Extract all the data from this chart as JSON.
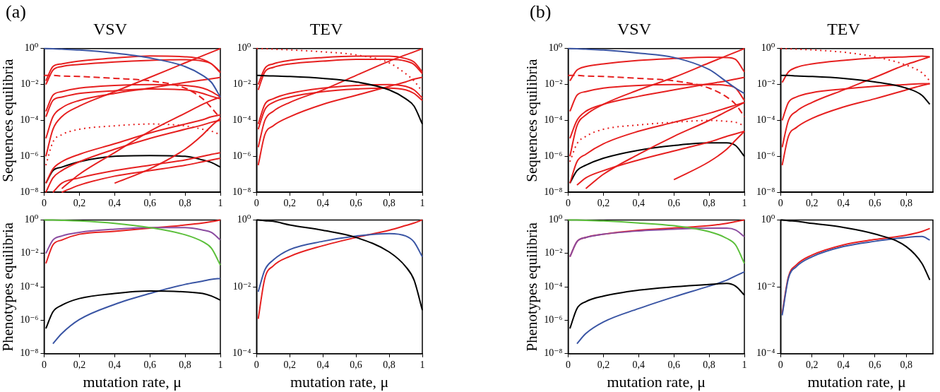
{
  "chart_data": [
    {
      "type": "line",
      "title": "VSV",
      "ylabel": "Sequences equilibria",
      "annotations": [
        "(a)"
      ],
      "log": true,
      "xlim": [
        0,
        1
      ],
      "ylim": [
        1e-08,
        1
      ],
      "xticks": [
        {
          "value": 0,
          "label": "0"
        },
        {
          "value": 0.2,
          "label": "0,2"
        },
        {
          "value": 0.4,
          "label": "0,4"
        },
        {
          "value": 0.6,
          "label": "0,6"
        },
        {
          "value": 0.8,
          "label": "0,8"
        },
        {
          "value": 1,
          "label": "1"
        }
      ],
      "yticks": [
        {
          "value": 1,
          "label": "10⁰"
        },
        {
          "value": 0.01,
          "label": "10⁻²"
        },
        {
          "value": 0.0001,
          "label": "10⁻⁴"
        },
        {
          "value": 1e-06,
          "label": "10⁻⁶"
        },
        {
          "value": 1e-08,
          "label": "10⁻⁸"
        }
      ],
      "x": [
        0,
        0.01,
        0.05,
        0.1,
        0.2,
        0.4,
        0.6,
        0.8,
        0.9,
        0.95,
        1
      ],
      "series": [
        {
          "color": "#3a55a4",
          "values": [
            1,
            1,
            0.98,
            0.93,
            0.83,
            0.56,
            0.3,
            0.1,
            0.032,
            0.013,
            0.002
          ]
        },
        {
          "color": "#e62020",
          "values": [
            null,
            0.016,
            0.1,
            0.14,
            0.2,
            0.3,
            0.39,
            0.35,
            0.25,
            0.14,
            0.045
          ]
        },
        {
          "color": "#e62020",
          "values": [
            null,
            0.01,
            0.063,
            0.1,
            0.13,
            0.18,
            0.22,
            0.24,
            0.2,
            0.14,
            0.05
          ]
        },
        {
          "color": "#e62020",
          "line_style": "dashed",
          "values": [
            0.032,
            0.032,
            0.032,
            0.03,
            0.028,
            0.022,
            0.016,
            0.0063,
            0.0016,
            0.0005,
            0.00013
          ]
        },
        {
          "color": "#e62020",
          "values": [
            null,
            0.00032,
            0.0025,
            0.004,
            0.0063,
            0.0089,
            0.01,
            0.0089,
            0.0063,
            0.004,
            0.002
          ]
        },
        {
          "color": "#e62020",
          "values": [
            null,
            0.00016,
            0.0013,
            0.002,
            0.0032,
            0.0045,
            0.0056,
            0.005,
            0.0032,
            0.0022,
            0.0016
          ]
        },
        {
          "color": "#e62020",
          "values": [
            null,
            1e-06,
            3.2e-05,
            0.00016,
            0.00063,
            0.004,
            0.025,
            0.16,
            0.4,
            0.63,
            1
          ]
        },
        {
          "color": "#e62020",
          "values": [
            null,
            1e-05,
            0.00016,
            0.0005,
            0.0013,
            0.0032,
            0.0063,
            0.013,
            0.018,
            0.021,
            0.025
          ]
        },
        {
          "color": "#e62020",
          "values": [
            null,
            null,
            null,
            1.6e-08,
            1e-07,
            1.6e-06,
            2.5e-05,
            0.00025,
            0.00079,
            0.0013,
            0.002
          ]
        },
        {
          "color": "#e62020",
          "line_style": "dotted",
          "values": [
            null,
            3.2e-07,
            6.3e-06,
            1.6e-05,
            3.2e-05,
            5e-05,
            6.3e-05,
            5e-05,
            3.2e-05,
            2.5e-05,
            1.6e-05
          ]
        },
        {
          "color": "#e62020",
          "values": [
            null,
            3.2e-08,
            2e-07,
            5e-07,
            1.3e-06,
            5e-06,
            2e-05,
            6.3e-05,
            0.00011,
            0.00016,
            0.0002
          ]
        },
        {
          "color": "#e62020",
          "values": [
            null,
            1e-08,
            6.3e-08,
            1.6e-07,
            5e-07,
            2.5e-06,
            1e-05,
            3.2e-05,
            5.6e-05,
            7.9e-05,
            0.0001
          ]
        },
        {
          "color": "#e62020",
          "values": [
            null,
            null,
            1e-08,
            3.2e-08,
            6.3e-08,
            1.6e-07,
            3.2e-07,
            6.3e-07,
            1e-06,
            1.3e-06,
            1.6e-06
          ]
        },
        {
          "color": "#e62020",
          "values": [
            null,
            null,
            null,
            1e-08,
            2.5e-08,
            7.9e-08,
            1.6e-07,
            3.2e-07,
            5e-07,
            6.3e-07,
            7.9e-07
          ]
        },
        {
          "color": "#e62020",
          "values": [
            null,
            null,
            null,
            null,
            null,
            3.2e-08,
            2e-07,
            2.5e-06,
            1.6e-05,
            5e-05,
            0.00013
          ]
        },
        {
          "color": "#000000",
          "values": [
            null,
            3.2e-08,
            1.6e-07,
            2.5e-07,
            5e-07,
            1e-06,
            1.1e-06,
            1e-06,
            6.3e-07,
            4.5e-07,
            2.5e-07
          ]
        }
      ]
    },
    {
      "type": "line",
      "title": "TEV",
      "log": true,
      "xlim": [
        0,
        1
      ],
      "ylim": [
        1e-08,
        1
      ],
      "xticks": [
        {
          "value": 0,
          "label": "0"
        },
        {
          "value": 0.2,
          "label": "0,2"
        },
        {
          "value": 0.4,
          "label": "0,4"
        },
        {
          "value": 0.6,
          "label": "0,6"
        },
        {
          "value": 0.8,
          "label": "0,8"
        },
        {
          "value": 1,
          "label": "1"
        }
      ],
      "yticks": [
        {
          "value": 1,
          "label": "10⁰"
        },
        {
          "value": 0.01,
          "label": "10⁻²"
        },
        {
          "value": 0.0001,
          "label": "10⁻⁴"
        },
        {
          "value": 1e-06,
          "label": "10⁻⁶"
        },
        {
          "value": 1e-08,
          "label": "10⁻⁸"
        }
      ],
      "x": [
        0,
        0.01,
        0.05,
        0.1,
        0.2,
        0.4,
        0.6,
        0.8,
        0.9,
        0.95,
        1
      ],
      "series": [
        {
          "color": "#e62020",
          "line_style": "dotted",
          "values": [
            1,
            1,
            0.98,
            0.93,
            0.85,
            0.66,
            0.45,
            0.16,
            0.04,
            0.016,
            0.004
          ]
        },
        {
          "color": "#000000",
          "values": [
            0.032,
            0.032,
            0.031,
            0.03,
            0.028,
            0.022,
            0.014,
            0.005,
            0.0016,
            0.00063,
            6.3e-05
          ]
        },
        {
          "color": "#e62020",
          "values": [
            null,
            0.01,
            0.079,
            0.14,
            0.22,
            0.32,
            0.38,
            0.38,
            0.28,
            0.18,
            0.05
          ]
        },
        {
          "color": "#e62020",
          "values": [
            null,
            0.005,
            0.05,
            0.089,
            0.14,
            0.2,
            0.25,
            0.25,
            0.2,
            0.13,
            0.04
          ]
        },
        {
          "color": "#e62020",
          "values": [
            null,
            3.2e-06,
            0.0001,
            0.00032,
            0.001,
            0.005,
            0.032,
            0.2,
            0.45,
            0.66,
            1
          ]
        },
        {
          "color": "#e62020",
          "values": [
            null,
            6.3e-05,
            0.00079,
            0.0016,
            0.0032,
            0.0063,
            0.0089,
            0.01,
            0.0079,
            0.005,
            0.0018
          ]
        },
        {
          "color": "#e62020",
          "values": [
            null,
            3.2e-05,
            0.0004,
            0.001,
            0.002,
            0.004,
            0.0056,
            0.0063,
            0.005,
            0.0032,
            0.0013
          ]
        },
        {
          "color": "#e62020",
          "values": [
            null,
            3.2e-07,
            1.6e-05,
            5e-05,
            0.00016,
            0.00079,
            0.0025,
            0.0079,
            0.014,
            0.02,
            0.025
          ]
        }
      ]
    },
    {
      "type": "line",
      "title": "VSV",
      "ylabel": "Sequences equilibria",
      "annotations": [
        "(b)"
      ],
      "log": true,
      "xlim": [
        0,
        1
      ],
      "ylim": [
        1e-08,
        1
      ],
      "xticks": [
        {
          "value": 0,
          "label": "0"
        },
        {
          "value": 0.2,
          "label": "0,2"
        },
        {
          "value": 0.4,
          "label": "0,4"
        },
        {
          "value": 0.6,
          "label": "0,6"
        },
        {
          "value": 0.8,
          "label": "0,8"
        },
        {
          "value": 1,
          "label": "1"
        }
      ],
      "yticks": [
        {
          "value": 1,
          "label": "10⁰"
        },
        {
          "value": 0.01,
          "label": "10⁻²"
        },
        {
          "value": 0.0001,
          "label": "10⁻⁴"
        },
        {
          "value": 1e-06,
          "label": "10⁻⁶"
        },
        {
          "value": 1e-08,
          "label": "10⁻⁸"
        }
      ],
      "x": [
        0,
        0.01,
        0.05,
        0.1,
        0.2,
        0.4,
        0.6,
        0.8,
        0.9,
        0.95,
        1
      ],
      "series": [
        {
          "color": "#3a55a4",
          "values": [
            1,
            1,
            0.98,
            0.93,
            0.83,
            0.56,
            0.32,
            0.068,
            0.014,
            0.0063,
            0.0032
          ]
        },
        {
          "color": "#e62020",
          "values": [
            null,
            0.016,
            0.063,
            0.1,
            0.14,
            0.22,
            0.28,
            0.33,
            0.32,
            0.25,
            0.05
          ]
        },
        {
          "color": "#e62020",
          "line_style": "dashed",
          "values": [
            0.032,
            0.032,
            0.032,
            0.03,
            0.028,
            0.022,
            0.016,
            0.0063,
            0.002,
            0.00079,
            0.00016
          ]
        },
        {
          "color": "#e62020",
          "values": [
            null,
            0.00032,
            0.0025,
            0.004,
            0.0063,
            0.0089,
            0.01,
            0.01,
            0.0089,
            0.0063,
            0.0013
          ]
        },
        {
          "color": "#e62020",
          "values": [
            null,
            1e-06,
            5e-05,
            0.0002,
            0.00079,
            0.005,
            0.025,
            0.16,
            0.4,
            0.63,
            1
          ]
        },
        {
          "color": "#e62020",
          "values": [
            null,
            1e-05,
            0.0001,
            0.00032,
            0.00079,
            0.0022,
            0.005,
            0.011,
            0.016,
            0.02,
            0.025
          ]
        },
        {
          "color": "#e62020",
          "values": [
            null,
            3.2e-08,
            5e-07,
            1.3e-06,
            5e-06,
            2.5e-05,
            7.9e-05,
            0.00025,
            0.0005,
            0.00071,
            0.001
          ]
        },
        {
          "color": "#e62020",
          "line_style": "dotted",
          "values": [
            null,
            5e-07,
            5e-06,
            1.3e-05,
            3.2e-05,
            5.6e-05,
            7.9e-05,
            0.0001,
            8.9e-05,
            7.9e-05,
            5e-05
          ]
        },
        {
          "color": "#e62020",
          "values": [
            null,
            null,
            null,
            1.6e-08,
            1e-07,
            1.3e-06,
            1.3e-05,
            0.0001,
            0.00032,
            0.00056,
            0.001
          ]
        },
        {
          "color": "#e62020",
          "values": [
            null,
            null,
            2.5e-08,
            6.3e-08,
            1.6e-07,
            6.3e-07,
            2e-06,
            6.3e-06,
            1.3e-05,
            1.8e-05,
            2.5e-05
          ]
        },
        {
          "color": "#e62020",
          "values": [
            null,
            null,
            null,
            null,
            null,
            null,
            5e-08,
            5e-07,
            2.5e-06,
            7.9e-06,
            2.5e-05
          ]
        },
        {
          "color": "#000000",
          "values": [
            null,
            3.2e-08,
            1.6e-07,
            3.2e-07,
            7.9e-07,
            2.2e-06,
            4e-06,
            5.6e-06,
            5.6e-06,
            4e-06,
            1e-06
          ]
        }
      ]
    },
    {
      "type": "line",
      "title": "TEV",
      "log": true,
      "xlim": [
        0,
        0.97
      ],
      "ylim": [
        1e-08,
        1
      ],
      "xticks": [
        {
          "value": 0,
          "label": "0"
        },
        {
          "value": 0.2,
          "label": "0,2"
        },
        {
          "value": 0.4,
          "label": "0,4"
        },
        {
          "value": 0.6,
          "label": "0,6"
        },
        {
          "value": 0.8,
          "label": "0,8"
        }
      ],
      "yticks": [
        {
          "value": 1,
          "label": "10⁰"
        },
        {
          "value": 0.01,
          "label": "10⁻²"
        },
        {
          "value": 0.0001,
          "label": "10⁻⁴"
        },
        {
          "value": 1e-06,
          "label": "10⁻⁶"
        },
        {
          "value": 1e-08,
          "label": "10⁻⁸"
        }
      ],
      "x": [
        0,
        0.01,
        0.05,
        0.1,
        0.2,
        0.4,
        0.6,
        0.8,
        0.9,
        0.95
      ],
      "series": [
        {
          "color": "#e62020",
          "line_style": "dotted",
          "values": [
            1,
            1,
            0.98,
            0.93,
            0.85,
            0.63,
            0.35,
            0.12,
            0.045,
            0.016
          ]
        },
        {
          "color": "#000000",
          "values": [
            0.032,
            0.032,
            0.032,
            0.03,
            0.028,
            0.022,
            0.014,
            0.0063,
            0.0025,
            0.00079
          ]
        },
        {
          "color": "#e62020",
          "values": [
            null,
            0.013,
            0.05,
            0.089,
            0.14,
            0.22,
            0.3,
            0.35,
            0.38,
            0.35
          ]
        },
        {
          "color": "#e62020",
          "values": [
            null,
            3.2e-06,
            0.0001,
            0.00032,
            0.001,
            0.005,
            0.025,
            0.13,
            0.25,
            0.35
          ]
        },
        {
          "color": "#e62020",
          "values": [
            null,
            0.0001,
            0.001,
            0.002,
            0.0035,
            0.0056,
            0.0079,
            0.01,
            0.011,
            0.011
          ]
        },
        {
          "color": "#e62020",
          "values": [
            null,
            3.2e-07,
            1.3e-05,
            4e-05,
            0.00013,
            0.00056,
            0.0016,
            0.005,
            0.0089,
            0.011
          ]
        }
      ]
    },
    {
      "type": "line",
      "ylabel": "Phenotypes equilibria",
      "xlabel": "mutation rate, μ",
      "log": true,
      "xlim": [
        0,
        1
      ],
      "ylim": [
        1e-08,
        1
      ],
      "xticks": [
        {
          "value": 0,
          "label": "0"
        },
        {
          "value": 0.2,
          "label": "0,2"
        },
        {
          "value": 0.4,
          "label": "0,4"
        },
        {
          "value": 0.6,
          "label": "0,6"
        },
        {
          "value": 0.8,
          "label": "0,8"
        },
        {
          "value": 1,
          "label": "1"
        }
      ],
      "yticks": [
        {
          "value": 1,
          "label": "10⁰"
        },
        {
          "value": 0.01,
          "label": "10⁻²"
        },
        {
          "value": 0.0001,
          "label": "10⁻⁴"
        },
        {
          "value": 1e-06,
          "label": "10⁻⁶"
        },
        {
          "value": 1e-08,
          "label": "10⁻⁸"
        }
      ],
      "x": [
        0,
        0.01,
        0.05,
        0.1,
        0.2,
        0.4,
        0.6,
        0.8,
        0.9,
        0.95,
        1
      ],
      "series": [
        {
          "color": "#5bbf3a",
          "values": [
            1,
            1,
            0.98,
            0.95,
            0.87,
            0.63,
            0.35,
            0.13,
            0.05,
            0.02,
            0.002
          ]
        },
        {
          "color": "#8b4ca0",
          "values": [
            null,
            0.01,
            0.063,
            0.11,
            0.18,
            0.28,
            0.35,
            0.35,
            0.25,
            0.18,
            0.063
          ]
        },
        {
          "color": "#e62020",
          "values": [
            null,
            0.0025,
            0.032,
            0.063,
            0.14,
            0.21,
            0.32,
            0.5,
            0.66,
            0.79,
            1
          ]
        },
        {
          "color": "#000000",
          "values": [
            null,
            3.2e-07,
            3.2e-06,
            7.9e-06,
            2e-05,
            4e-05,
            5.6e-05,
            5e-05,
            4e-05,
            2.8e-05,
            1.6e-05
          ]
        },
        {
          "color": "#3a55a4",
          "values": [
            null,
            null,
            4e-08,
            1.6e-07,
            1.1e-06,
            8.9e-06,
            4e-05,
            0.00014,
            0.00022,
            0.00028,
            0.00032
          ]
        }
      ]
    },
    {
      "type": "line",
      "xlabel": "mutation rate, μ",
      "log": true,
      "xlim": [
        0,
        1
      ],
      "ylim": [
        0.0001,
        1
      ],
      "xticks": [
        {
          "value": 0,
          "label": "0"
        },
        {
          "value": 0.2,
          "label": "0,2"
        },
        {
          "value": 0.4,
          "label": "0,4"
        },
        {
          "value": 0.6,
          "label": "0,6"
        },
        {
          "value": 0.8,
          "label": "0,8"
        },
        {
          "value": 1,
          "label": "1"
        }
      ],
      "yticks": [
        {
          "value": 1,
          "label": "10⁰"
        },
        {
          "value": 0.01,
          "label": "10⁻²"
        },
        {
          "value": 0.0001,
          "label": "10⁻⁴"
        }
      ],
      "x": [
        0,
        0.01,
        0.05,
        0.1,
        0.2,
        0.4,
        0.6,
        0.8,
        0.9,
        0.95,
        1
      ],
      "series": [
        {
          "color": "#000000",
          "values": [
            1,
            1,
            0.95,
            0.91,
            0.71,
            0.49,
            0.3,
            0.11,
            0.04,
            0.016,
            0.002
          ]
        },
        {
          "color": "#3a55a4",
          "values": [
            null,
            0.0071,
            0.032,
            0.063,
            0.13,
            0.23,
            0.33,
            0.39,
            0.33,
            0.22,
            0.079
          ]
        },
        {
          "color": "#e62020",
          "values": [
            null,
            0.0011,
            0.018,
            0.042,
            0.081,
            0.17,
            0.3,
            0.49,
            0.68,
            0.81,
            1
          ]
        }
      ]
    },
    {
      "type": "line",
      "ylabel": "Phenotypes equilibria",
      "xlabel": "mutation rate, μ",
      "log": true,
      "xlim": [
        0,
        1
      ],
      "ylim": [
        1e-08,
        1
      ],
      "xticks": [
        {
          "value": 0,
          "label": "0"
        },
        {
          "value": 0.2,
          "label": "0,2"
        },
        {
          "value": 0.4,
          "label": "0,4"
        },
        {
          "value": 0.6,
          "label": "0,6"
        },
        {
          "value": 0.8,
          "label": "0,8"
        },
        {
          "value": 1,
          "label": "1"
        }
      ],
      "yticks": [
        {
          "value": 1,
          "label": "10⁰"
        },
        {
          "value": 0.01,
          "label": "10⁻²"
        },
        {
          "value": 0.0001,
          "label": "10⁻⁴"
        },
        {
          "value": 1e-06,
          "label": "10⁻⁶"
        },
        {
          "value": 1e-08,
          "label": "10⁻⁸"
        }
      ],
      "x": [
        0,
        0.01,
        0.05,
        0.1,
        0.2,
        0.4,
        0.6,
        0.8,
        0.9,
        0.95,
        1
      ],
      "series": [
        {
          "color": "#5bbf3a",
          "values": [
            1,
            1,
            0.98,
            0.95,
            0.87,
            0.66,
            0.45,
            0.2,
            0.079,
            0.032,
            0.0025
          ]
        },
        {
          "color": "#8b4ca0",
          "values": [
            null,
            0.0063,
            0.05,
            0.089,
            0.14,
            0.22,
            0.28,
            0.32,
            0.32,
            0.25,
            0.1
          ]
        },
        {
          "color": "#e62020",
          "values": [
            null,
            0.0063,
            0.05,
            0.089,
            0.14,
            0.24,
            0.33,
            0.45,
            0.63,
            0.79,
            1
          ]
        },
        {
          "color": "#000000",
          "values": [
            null,
            3.2e-07,
            5e-06,
            1.3e-05,
            2.8e-05,
            6.3e-05,
            0.0001,
            0.00014,
            0.00016,
            0.00011,
            3.2e-05
          ]
        },
        {
          "color": "#3a55a4",
          "values": [
            null,
            null,
            4e-08,
            1.6e-07,
            7.9e-07,
            5e-06,
            2.5e-05,
            0.00011,
            0.00025,
            0.00045,
            0.00079
          ]
        }
      ]
    },
    {
      "type": "line",
      "xlabel": "mutation rate, μ",
      "log": true,
      "xlim": [
        0,
        0.97
      ],
      "ylim": [
        0.0001,
        1
      ],
      "xticks": [
        {
          "value": 0,
          "label": "0"
        },
        {
          "value": 0.2,
          "label": "0,2"
        },
        {
          "value": 0.4,
          "label": "0,4"
        },
        {
          "value": 0.6,
          "label": "0,6"
        },
        {
          "value": 0.8,
          "label": "0,8"
        }
      ],
      "yticks": [
        {
          "value": 1,
          "label": "10⁰"
        },
        {
          "value": 0.01,
          "label": "10⁻²"
        },
        {
          "value": 0.0001,
          "label": "10⁻⁴"
        }
      ],
      "x": [
        0,
        0.01,
        0.05,
        0.1,
        0.2,
        0.4,
        0.6,
        0.8,
        0.9,
        0.95
      ],
      "series": [
        {
          "color": "#000000",
          "values": [
            1,
            1,
            0.95,
            0.91,
            0.79,
            0.6,
            0.38,
            0.16,
            0.05,
            0.016
          ]
        },
        {
          "color": "#3a55a4",
          "values": [
            null,
            0.0014,
            0.018,
            0.04,
            0.079,
            0.16,
            0.23,
            0.3,
            0.32,
            0.25
          ]
        },
        {
          "color": "#e62020",
          "values": [
            null,
            0.0016,
            0.02,
            0.045,
            0.089,
            0.18,
            0.26,
            0.35,
            0.45,
            0.56
          ]
        }
      ]
    }
  ]
}
